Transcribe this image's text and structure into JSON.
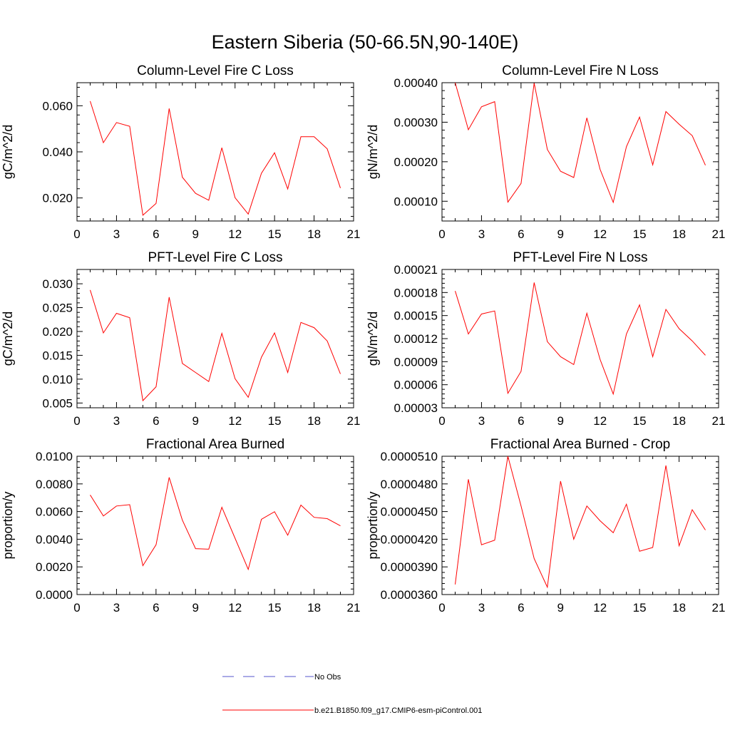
{
  "title": "Eastern Siberia (50-66.5N,90-140E)",
  "colors": {
    "case": "#ff0000",
    "obs": "#5555cc",
    "axis": "#000000"
  },
  "legend": [
    {
      "label": "No Obs",
      "style": "dashed",
      "color": "#5555cc"
    },
    {
      "label": "b.e21.B1850.f09_g17.CMIP6-esm-piControl.001",
      "style": "solid",
      "color": "#ff0000"
    }
  ],
  "chart_data": [
    {
      "type": "line",
      "title": "Column-Level Fire C Loss",
      "ylabel": "gC/m^2/d",
      "xlim": [
        0,
        21
      ],
      "ylim": [
        0.01,
        0.07
      ],
      "xticks": [
        0,
        3,
        6,
        9,
        12,
        15,
        18,
        21
      ],
      "xtick_labels": [
        "0",
        "3",
        "6",
        "9",
        "12",
        "15",
        "18",
        "21"
      ],
      "yticks": [
        0.02,
        0.04,
        0.06
      ],
      "ytick_labels": [
        "0.020",
        "0.040",
        "0.060"
      ],
      "x": [
        1,
        2,
        3,
        4,
        5,
        6,
        7,
        8,
        9,
        10,
        11,
        12,
        13,
        14,
        15,
        16,
        17,
        18,
        19,
        20
      ],
      "series": [
        {
          "values": [
            0.062,
            0.044,
            0.0527,
            0.0511,
            0.0125,
            0.0176,
            0.0588,
            0.029,
            0.022,
            0.019,
            0.0418,
            0.0201,
            0.013,
            0.0307,
            0.0396,
            0.0239,
            0.0466,
            0.0466,
            0.0413,
            0.0243
          ]
        }
      ]
    },
    {
      "type": "line",
      "title": "Column-Level Fire N Loss",
      "ylabel": "gN/m^2/d",
      "xlim": [
        0,
        21
      ],
      "ylim": [
        5e-05,
        0.0004
      ],
      "xticks": [
        0,
        3,
        6,
        9,
        12,
        15,
        18,
        21
      ],
      "xtick_labels": [
        "0",
        "3",
        "6",
        "9",
        "12",
        "15",
        "18",
        "21"
      ],
      "yticks": [
        0.0001,
        0.0002,
        0.0003,
        0.0004
      ],
      "ytick_labels": [
        "0.00010",
        "0.00020",
        "0.00030",
        "0.00040"
      ],
      "x": [
        1,
        2,
        3,
        4,
        5,
        6,
        7,
        8,
        9,
        10,
        11,
        12,
        13,
        14,
        15,
        16,
        17,
        18,
        19,
        20
      ],
      "series": [
        {
          "values": [
            0.0004,
            0.000281,
            0.000339,
            0.000352,
            9.76e-05,
            0.000145,
            0.000399,
            0.000231,
            0.000176,
            0.00016,
            0.000311,
            0.000181,
            9.7e-05,
            0.000238,
            0.000313,
            0.000192,
            0.000327,
            0.000295,
            0.000266,
            0.000191
          ]
        }
      ]
    },
    {
      "type": "line",
      "title": "PFT-Level Fire C Loss",
      "ylabel": "gC/m^2/d",
      "xlim": [
        0,
        21
      ],
      "ylim": [
        0.004,
        0.033
      ],
      "xticks": [
        0,
        3,
        6,
        9,
        12,
        15,
        18,
        21
      ],
      "xtick_labels": [
        "0",
        "3",
        "6",
        "9",
        "12",
        "15",
        "18",
        "21"
      ],
      "yticks": [
        0.005,
        0.01,
        0.015,
        0.02,
        0.025,
        0.03
      ],
      "ytick_labels": [
        "0.005",
        "0.010",
        "0.015",
        "0.020",
        "0.025",
        "0.030"
      ],
      "x": [
        1,
        2,
        3,
        4,
        5,
        6,
        7,
        8,
        9,
        10,
        11,
        12,
        13,
        14,
        15,
        16,
        17,
        18,
        19,
        20
      ],
      "series": [
        {
          "values": [
            0.0287,
            0.0197,
            0.0238,
            0.0229,
            0.0055,
            0.0084,
            0.0272,
            0.0133,
            0.0114,
            0.0095,
            0.0196,
            0.0101,
            0.0062,
            0.0146,
            0.0197,
            0.0114,
            0.0219,
            0.0208,
            0.018,
            0.0111
          ]
        }
      ]
    },
    {
      "type": "line",
      "title": "PFT-Level Fire N Loss",
      "ylabel": "gN/m^2/d",
      "xlim": [
        0,
        21
      ],
      "ylim": [
        3e-05,
        0.00021
      ],
      "xticks": [
        0,
        3,
        6,
        9,
        12,
        15,
        18,
        21
      ],
      "xtick_labels": [
        "0",
        "3",
        "6",
        "9",
        "12",
        "15",
        "18",
        "21"
      ],
      "yticks": [
        3e-05,
        6e-05,
        9e-05,
        0.00012,
        0.00015,
        0.00018,
        0.00021
      ],
      "ytick_labels": [
        "0.00003",
        "0.00006",
        "0.00009",
        "0.00012",
        "0.00015",
        "0.00018",
        "0.00021"
      ],
      "x": [
        1,
        2,
        3,
        4,
        5,
        6,
        7,
        8,
        9,
        10,
        11,
        12,
        13,
        14,
        15,
        16,
        17,
        18,
        19,
        20
      ],
      "series": [
        {
          "values": [
            0.000182,
            0.000126,
            0.000152,
            0.000156,
            4.88e-05,
            7.73e-05,
            0.000193,
            0.000116,
            9.65e-05,
            8.62e-05,
            0.000153,
            9.31e-05,
            4.78e-05,
            0.000126,
            0.000164,
            9.65e-05,
            0.000158,
            0.000133,
            0.000117,
            9.83e-05
          ]
        }
      ]
    },
    {
      "type": "line",
      "title": "Fractional Area Burned",
      "ylabel": "proportion/y",
      "xlim": [
        0,
        21
      ],
      "ylim": [
        0,
        0.01
      ],
      "xticks": [
        0,
        3,
        6,
        9,
        12,
        15,
        18,
        21
      ],
      "xtick_labels": [
        "0",
        "3",
        "6",
        "9",
        "12",
        "15",
        "18",
        "21"
      ],
      "yticks": [
        0,
        0.002,
        0.004,
        0.006,
        0.008,
        0.01
      ],
      "ytick_labels": [
        "0.0000",
        "0.0020",
        "0.0040",
        "0.0060",
        "0.0080",
        "0.0100"
      ],
      "x": [
        1,
        2,
        3,
        4,
        5,
        6,
        7,
        8,
        9,
        10,
        11,
        12,
        13,
        14,
        15,
        16,
        17,
        18,
        19,
        20
      ],
      "series": [
        {
          "values": [
            0.0072,
            0.00568,
            0.0064,
            0.0065,
            0.00209,
            0.0036,
            0.00847,
            0.00538,
            0.00332,
            0.00328,
            0.00631,
            0.00407,
            0.00182,
            0.00544,
            0.00599,
            0.00429,
            0.00647,
            0.00558,
            0.00549,
            0.00497
          ]
        }
      ]
    },
    {
      "type": "line",
      "title": "Fractional Area Burned - Crop",
      "ylabel": "proportion/y",
      "xlim": [
        0,
        21
      ],
      "ylim": [
        3.6e-05,
        5.1e-05
      ],
      "xticks": [
        0,
        3,
        6,
        9,
        12,
        15,
        18,
        21
      ],
      "xtick_labels": [
        "0",
        "3",
        "6",
        "9",
        "12",
        "15",
        "18",
        "21"
      ],
      "yticks": [
        3.6e-05,
        3.9e-05,
        4.2e-05,
        4.5e-05,
        4.8e-05,
        5.1e-05
      ],
      "ytick_labels": [
        "0.0000360",
        "0.0000390",
        "0.0000420",
        "0.0000450",
        "0.0000480",
        "0.0000510"
      ],
      "x": [
        1,
        2,
        3,
        4,
        5,
        6,
        7,
        8,
        9,
        10,
        11,
        12,
        13,
        14,
        15,
        16,
        17,
        18,
        19,
        20
      ],
      "series": [
        {
          "values": [
            3.71e-05,
            4.85e-05,
            4.14e-05,
            4.19e-05,
            5.1e-05,
            4.56e-05,
            3.99e-05,
            3.68e-05,
            4.83e-05,
            4.2e-05,
            4.56e-05,
            4.4e-05,
            4.27e-05,
            4.58e-05,
            4.07e-05,
            4.11e-05,
            5e-05,
            4.13e-05,
            4.52e-05,
            4.3e-05
          ]
        }
      ]
    }
  ]
}
